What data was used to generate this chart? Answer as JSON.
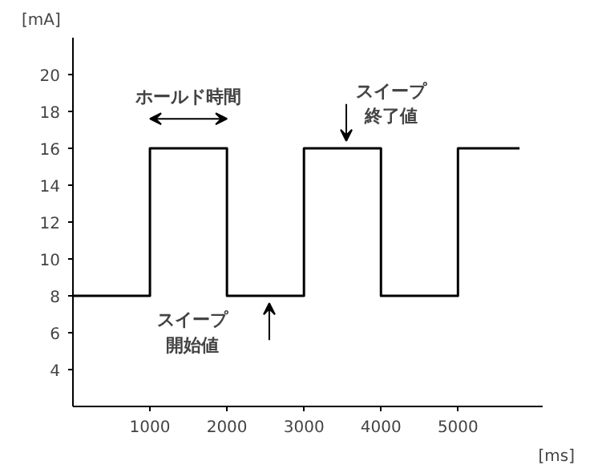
{
  "chart_data": {
    "type": "step",
    "x": [
      0,
      1000,
      2000,
      3000,
      4000,
      5000,
      5800
    ],
    "values": [
      8,
      16,
      8,
      16,
      8,
      16,
      16
    ],
    "color": "#000000",
    "xlim": [
      0,
      6100
    ],
    "ylim": [
      2,
      22
    ],
    "xticks": [
      1000,
      2000,
      3000,
      4000,
      5000
    ],
    "yticks": [
      4,
      6,
      8,
      10,
      12,
      14,
      16,
      18,
      20
    ],
    "xlabel": "[ms]",
    "ylabel": "[mA]",
    "grid": false,
    "annotations": [
      {
        "text": "ホールド時間",
        "x": 1500,
        "y": 16
      },
      {
        "text": "スイープ終了値",
        "x": 3550,
        "y": 16
      },
      {
        "text": "スイープ開始値",
        "x": 2550,
        "y": 8
      }
    ]
  }
}
